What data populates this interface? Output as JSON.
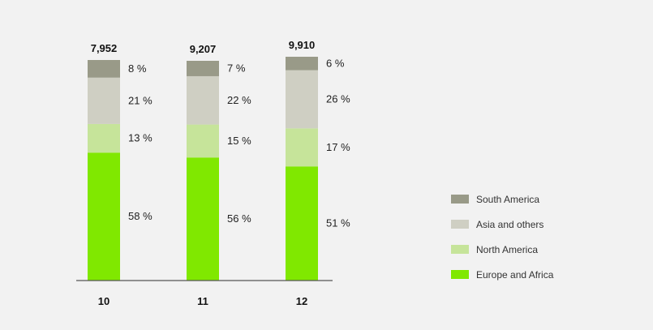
{
  "chart_data": {
    "type": "bar",
    "stacked": true,
    "normalized": "percent",
    "categories": [
      "10",
      "11",
      "12"
    ],
    "totals": [
      "7,952",
      "9,207",
      "9,910"
    ],
    "series": [
      {
        "name": "Europe and Africa",
        "color": "#80e800",
        "values": [
          58,
          56,
          51
        ]
      },
      {
        "name": "North America",
        "color": "#c6e49a",
        "values": [
          13,
          15,
          17
        ]
      },
      {
        "name": "Asia and others",
        "color": "#cfcfc3",
        "values": [
          21,
          22,
          26
        ]
      },
      {
        "name": "South America",
        "color": "#999a88",
        "values": [
          8,
          7,
          6
        ]
      }
    ],
    "value_suffix": " %",
    "title": "",
    "xlabel": "",
    "ylabel": "",
    "grid": false,
    "legend": {
      "position": "right",
      "order": [
        "South America",
        "Asia and others",
        "North America",
        "Europe and Africa"
      ]
    }
  }
}
